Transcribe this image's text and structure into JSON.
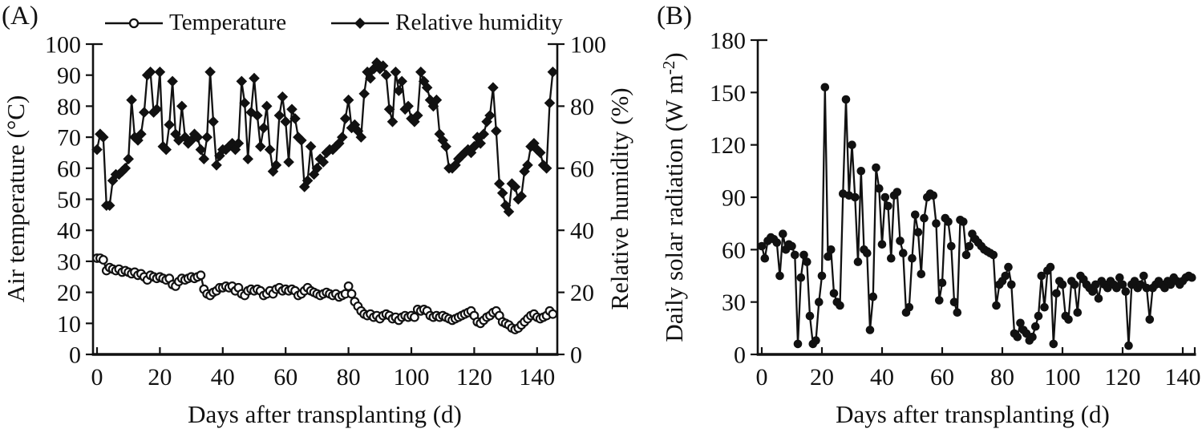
{
  "figure": {
    "panel_a_label": "(A)",
    "panel_b_label": "(B)"
  },
  "chart_data": [
    {
      "type": "line",
      "panel": "A",
      "title": "",
      "xlabel": "Days after transplanting (d)",
      "ylabel_left": "Air temperature (°C)",
      "ylabel_right": "Relative humidity (%)",
      "xlim": [
        0,
        145
      ],
      "x_ticks": [
        0,
        20,
        40,
        60,
        80,
        100,
        120,
        140
      ],
      "ylim_left": [
        0,
        100
      ],
      "y_ticks_left": [
        0,
        10,
        20,
        30,
        40,
        50,
        60,
        70,
        80,
        90,
        100
      ],
      "ylim_right": [
        0,
        100
      ],
      "y_ticks_right": [
        0,
        20,
        40,
        60,
        80,
        100
      ],
      "legend_position": "top",
      "grid": false,
      "color": "#111111",
      "x_start": 0,
      "x_step": 1,
      "series": [
        {
          "name": "Temperature",
          "axis": "left",
          "marker": "open-circle",
          "values": [
            31,
            31,
            30.5,
            27,
            28,
            27.5,
            27,
            27.5,
            26.5,
            27,
            26.5,
            26,
            26.5,
            25.5,
            26,
            25,
            24,
            25.5,
            25,
            24.5,
            25,
            24.5,
            24,
            24.5,
            22.5,
            22,
            23.5,
            24.5,
            24,
            24.5,
            25,
            24.5,
            25,
            25.5,
            21,
            19.5,
            19,
            20,
            20.5,
            21.5,
            21.5,
            22,
            21.5,
            22,
            20.5,
            21.5,
            19.5,
            19,
            20.5,
            21,
            20.5,
            21,
            20.5,
            19,
            19.5,
            20.5,
            19.5,
            21,
            21.5,
            20.5,
            21,
            20.5,
            21,
            20.5,
            19,
            19.5,
            20.5,
            21.5,
            20.5,
            20,
            19.5,
            19,
            19.5,
            20,
            19.5,
            19,
            19.5,
            18.5,
            19,
            19.5,
            22,
            19.5,
            17,
            15.5,
            14,
            13,
            12.5,
            13,
            12,
            12.5,
            11.5,
            12.5,
            13,
            12.5,
            11.5,
            12,
            11,
            12,
            12.5,
            12,
            12.5,
            12,
            14.5,
            14,
            14.5,
            14,
            12.5,
            12,
            12.5,
            12,
            12.5,
            12,
            11.5,
            11,
            11.5,
            12,
            12.5,
            13,
            13.5,
            14,
            12.5,
            10.5,
            10,
            11,
            12,
            12.5,
            13.5,
            14,
            12.5,
            10.5,
            10,
            9.5,
            8.5,
            8,
            8.5,
            9.5,
            10.5,
            11.5,
            12.5,
            13,
            12,
            11.5,
            12,
            12.5,
            14,
            13
          ]
        },
        {
          "name": "Relative humidity",
          "axis": "right",
          "marker": "filled-diamond",
          "values": [
            66,
            71,
            70,
            48,
            48,
            56,
            58,
            58,
            59,
            60,
            63,
            82,
            70,
            69,
            71,
            78,
            90,
            91,
            78,
            79,
            91,
            67,
            66,
            74,
            88,
            71,
            69,
            80,
            70,
            68,
            69,
            71,
            70,
            66,
            63,
            70,
            91,
            75,
            61,
            64,
            66,
            66,
            67,
            68,
            66,
            68,
            88,
            81,
            63,
            78,
            89,
            77,
            67,
            73,
            80,
            66,
            59,
            61,
            77,
            83,
            75,
            62,
            79,
            76,
            70,
            69,
            54,
            56,
            67,
            58,
            60,
            63,
            62,
            65,
            66,
            66,
            67,
            68,
            70,
            76,
            82,
            73,
            74,
            72,
            70,
            84,
            91,
            89,
            92,
            94,
            92,
            93,
            90,
            79,
            75,
            91,
            85,
            88,
            79,
            80,
            76,
            75,
            77,
            91,
            88,
            86,
            82,
            80,
            82,
            71,
            69,
            67,
            60,
            60,
            61,
            63,
            64,
            65,
            66,
            65,
            67,
            70,
            68,
            71,
            75,
            77,
            86,
            72,
            55,
            52,
            48,
            46,
            55,
            54,
            50,
            51,
            59,
            61,
            67,
            68,
            66,
            65,
            61,
            60,
            81,
            91
          ]
        }
      ]
    },
    {
      "type": "line",
      "panel": "B",
      "title": "",
      "xlabel": "Days after transplanting (d)",
      "ylabel": {
        "prefix": "Daily solar radiation (W m",
        "sup": "-2",
        "suffix": ")"
      },
      "xlim": [
        0,
        145
      ],
      "x_ticks": [
        0,
        20,
        40,
        60,
        80,
        100,
        120,
        140
      ],
      "ylim": [
        0,
        180
      ],
      "y_ticks": [
        0,
        30,
        60,
        90,
        120,
        150,
        180
      ],
      "grid": false,
      "color": "#111111",
      "x_start": 0,
      "x_step": 1,
      "series": [
        {
          "name": "Daily solar radiation",
          "axis": "left",
          "marker": "filled-circle",
          "values": [
            62,
            55,
            65,
            67,
            66,
            64,
            45,
            69,
            60,
            63,
            62,
            57,
            6,
            44,
            57,
            53,
            22,
            6,
            8,
            30,
            45,
            153,
            56,
            60,
            35,
            30,
            28,
            92,
            146,
            91,
            120,
            90,
            53,
            105,
            60,
            58,
            14,
            33,
            107,
            95,
            63,
            90,
            85,
            55,
            91,
            93,
            65,
            58,
            24,
            27,
            55,
            80,
            70,
            46,
            78,
            90,
            92,
            91,
            75,
            31,
            41,
            78,
            76,
            62,
            30,
            24,
            77,
            76,
            57,
            62,
            69,
            66,
            64,
            62,
            60,
            59,
            58,
            57,
            28,
            40,
            42,
            45,
            50,
            40,
            12,
            10,
            18,
            14,
            12,
            8,
            10,
            16,
            22,
            45,
            27,
            48,
            50,
            6,
            35,
            42,
            40,
            22,
            20,
            42,
            40,
            24,
            45,
            43,
            40,
            38,
            36,
            40,
            32,
            42,
            40,
            38,
            42,
            40,
            38,
            44,
            40,
            36,
            5,
            40,
            42,
            38,
            40,
            45,
            38,
            20,
            38,
            40,
            42,
            40,
            38,
            42,
            40,
            44,
            42,
            40,
            42,
            44,
            45,
            44
          ]
        }
      ]
    }
  ]
}
